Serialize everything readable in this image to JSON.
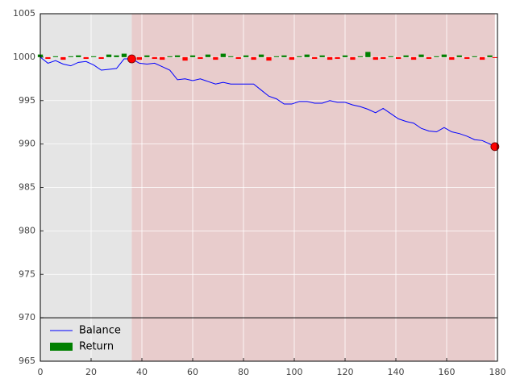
{
  "chart_data": {
    "type": "line-bar",
    "x": [
      0,
      3,
      6,
      9,
      12,
      15,
      18,
      21,
      24,
      27,
      30,
      33,
      36,
      39,
      42,
      45,
      48,
      51,
      54,
      57,
      60,
      63,
      66,
      69,
      72,
      75,
      78,
      81,
      84,
      87,
      90,
      93,
      96,
      99,
      102,
      105,
      108,
      111,
      114,
      117,
      120,
      123,
      126,
      129,
      132,
      135,
      138,
      141,
      144,
      147,
      150,
      153,
      156,
      159,
      162,
      165,
      168,
      171,
      174,
      177,
      179
    ],
    "series": [
      {
        "name": "Balance",
        "type": "line",
        "color": "blue",
        "values": [
          1000,
          999.3,
          999.6,
          999.2,
          999,
          999.4,
          999.5,
          999.1,
          998.5,
          998.6,
          998.7,
          999.8,
          999.8,
          999.3,
          999.2,
          999.3,
          998.9,
          998.5,
          997.4,
          997.5,
          997.3,
          997.5,
          997.2,
          996.9,
          997.1,
          996.9,
          996.9,
          996.9,
          996.9,
          996.2,
          995.5,
          995.2,
          994.6,
          994.6,
          994.9,
          994.9,
          994.7,
          994.7,
          995.0,
          994.8,
          994.8,
          994.5,
          994.3,
          994.0,
          993.6,
          994.1,
          993.5,
          992.9,
          992.6,
          992.4,
          991.8,
          991.5,
          991.4,
          991.9,
          991.4,
          991.2,
          990.9,
          990.5,
          990.4,
          990.0,
          989.7
        ]
      },
      {
        "name": "Return",
        "type": "bar",
        "color": "green",
        "negative_color": "red",
        "bottom": 1000,
        "values": [
          0.3,
          -0.2,
          0.1,
          -0.3,
          0.1,
          0.2,
          -0.2,
          0.1,
          -0.2,
          0.3,
          0.2,
          0.4,
          0.1,
          -0.3,
          0.2,
          -0.2,
          -0.3,
          0.1,
          0.2,
          -0.4,
          0.2,
          -0.2,
          0.3,
          -0.3,
          0.4,
          0.1,
          -0.2,
          0.2,
          -0.3,
          0.3,
          -0.4,
          0.1,
          0.2,
          -0.3,
          0.1,
          0.3,
          -0.2,
          0.2,
          -0.3,
          -0.2,
          0.2,
          -0.3,
          0.1,
          0.6,
          -0.3,
          -0.2,
          0.1,
          -0.2,
          0.2,
          -0.3,
          0.3,
          -0.2,
          0.1,
          0.3,
          -0.3,
          0.2,
          -0.2,
          0.1,
          -0.3,
          0.2,
          -0.1
        ]
      }
    ],
    "markers": [
      {
        "x": 36,
        "y": 999.8
      },
      {
        "x": 179,
        "y": 989.7
      }
    ],
    "marker_color": "red",
    "spans": [
      {
        "start": 0,
        "end": 36,
        "color": "#e5e5e5"
      },
      {
        "start": 36,
        "end": 179,
        "color": "#e8cccc"
      }
    ],
    "hline": {
      "y": 970,
      "color": "black"
    },
    "xlim": [
      0,
      180
    ],
    "ylim": [
      965,
      1005
    ],
    "xticks": [
      0,
      20,
      40,
      60,
      80,
      100,
      120,
      140,
      160,
      180
    ],
    "yticks": [
      965,
      970,
      975,
      980,
      985,
      990,
      995,
      1000,
      1005
    ],
    "grid": true,
    "legend": "lower left"
  }
}
